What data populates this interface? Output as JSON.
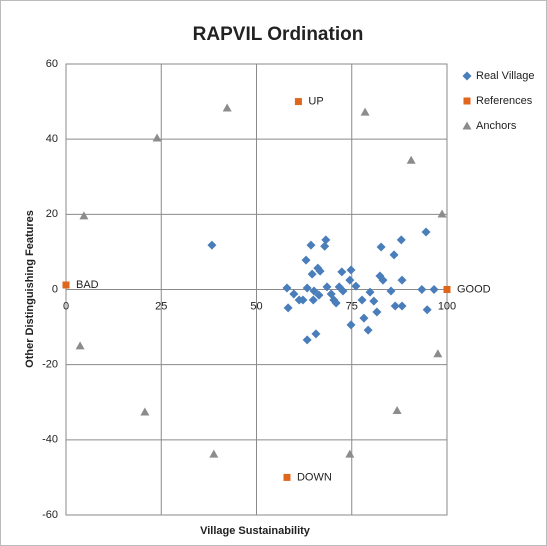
{
  "chart_data": {
    "type": "scatter",
    "title": "RAPVIL Ordination",
    "xlabel": "Village Sustainability",
    "ylabel": "Other Distinguishing Features",
    "xlim": [
      0,
      100
    ],
    "xticks": [
      0,
      25,
      50,
      75,
      100
    ],
    "ylim": [
      -60,
      60
    ],
    "yticks": [
      -60,
      -40,
      -20,
      0,
      20,
      40,
      60
    ],
    "grid": true,
    "legend": "right",
    "series": [
      {
        "name": "Real Village",
        "color": "#4a7ebb",
        "marker": "diamond",
        "x": [
          38.3,
          58.0,
          58.3,
          59.8,
          61.2,
          62.2,
          63.0,
          63.3,
          63.3,
          64.3,
          64.6,
          65.1,
          64.9,
          65.6,
          66.1,
          66.7,
          66.4,
          68.2,
          67.9,
          68.5,
          69.6,
          70.3,
          70.9,
          71.7,
          72.4,
          72.7,
          74.5,
          74.8,
          74.8,
          76.1,
          77.7,
          78.2,
          79.3,
          79.8,
          80.8,
          81.6,
          82.4,
          82.7,
          83.2,
          85.3,
          86.1,
          86.4,
          88.0,
          88.2,
          88.2,
          93.4,
          94.5,
          94.8,
          96.6
        ],
        "y": [
          11.8,
          0.4,
          -4.9,
          -1.2,
          -2.8,
          -2.8,
          7.8,
          0.4,
          -13.4,
          11.8,
          4.1,
          -0.4,
          -2.8,
          -11.8,
          5.7,
          4.9,
          -1.5,
          13.2,
          11.5,
          0.7,
          -1.2,
          -2.8,
          -3.6,
          0.7,
          4.7,
          -0.4,
          2.5,
          5.2,
          -9.4,
          0.9,
          -2.8,
          -7.6,
          -10.8,
          -0.7,
          -3.1,
          -6.0,
          3.6,
          11.3,
          2.5,
          -0.4,
          9.2,
          -4.4,
          13.2,
          2.5,
          -4.4,
          0,
          15.3,
          -5.4,
          0
        ]
      },
      {
        "name": "References",
        "color": "#e0661c",
        "marker": "square",
        "x": [
          0,
          61,
          58,
          100
        ],
        "y": [
          1.2,
          50,
          -50,
          0
        ],
        "labels": [
          "BAD",
          "UP",
          "DOWN",
          "GOOD"
        ]
      },
      {
        "name": "Anchors",
        "color": "#8c8c8c",
        "marker": "triangle",
        "x": [
          23.9,
          42.3,
          78.5,
          90.6,
          98.7,
          4.7,
          3.7,
          20.7,
          38.8,
          74.5,
          86.9,
          97.6
        ],
        "y": [
          40.3,
          48.3,
          47.2,
          34.4,
          20.1,
          19.6,
          -15,
          -32.6,
          -43.8,
          -43.8,
          -32.2,
          -17.1
        ]
      }
    ]
  }
}
